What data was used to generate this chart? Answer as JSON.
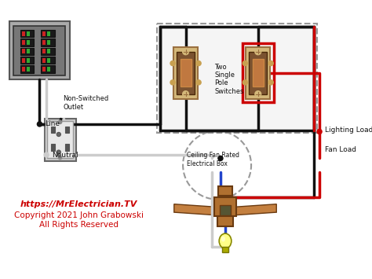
{
  "background_color": "#ffffff",
  "text_color_red": "#cc0000",
  "text_color_black": "#111111",
  "watermark_line1": "https://MrElectrician.TV",
  "watermark_line2": "Copyright 2021 John Grabowski",
  "watermark_line3": "All Rights Reserved",
  "label_outlet": "Non-Switched\nOutlet",
  "label_line": "Line",
  "label_neutral": "Neutral",
  "label_switches": "Two\nSingle\nPole\nSwitches",
  "label_lighting": "Lighting Load",
  "label_fan": "Fan Load",
  "label_box": "Ceiling Fan Rated\nElectrical Box",
  "wire_black": "#111111",
  "wire_white": "#cccccc",
  "wire_red": "#cc0000",
  "wire_blue": "#2244cc",
  "switch_body": "#d4b87a",
  "switch_dark": "#7a5230",
  "switch_edge": "#9a7040",
  "panel_outer": "#888888",
  "panel_inner": "#aaaaaa",
  "panel_bg": "#999999",
  "outlet_face": "#e0e0e0",
  "outlet_slot": "#555555",
  "fan_brown": "#b07030",
  "fan_dark": "#6a3a10",
  "fan_blade": "#c48040",
  "bulb_yellow": "#ffff88",
  "bulb_base": "#999900",
  "dashed_gray": "#999999"
}
